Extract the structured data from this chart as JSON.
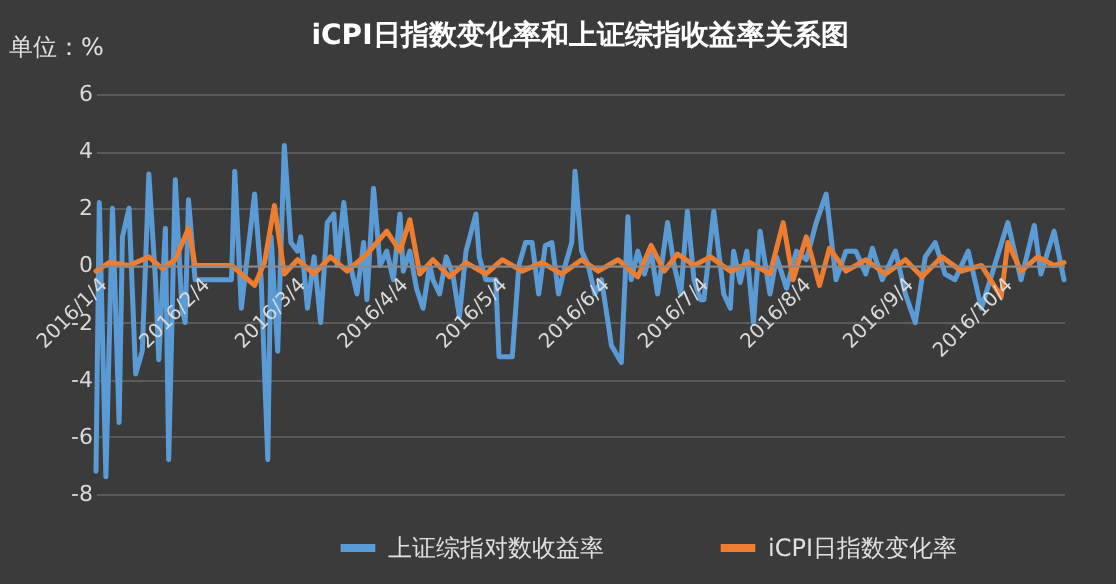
{
  "chart_data": {
    "type": "line",
    "title": "iCPI日指数变化率和上证综指收益率关系图",
    "ylabel": "单位：%",
    "xlim": [
      "2016-01-04",
      "2016-10-23"
    ],
    "ylim": [
      -8,
      6
    ],
    "yticks": [
      -8,
      -6,
      -4,
      -2,
      0,
      2,
      4,
      6
    ],
    "xticks": [
      {
        "value": "2016-01-04",
        "label": "2016/1/4"
      },
      {
        "value": "2016-02-04",
        "label": "2016/2/4"
      },
      {
        "value": "2016-03-04",
        "label": "2016/3/4"
      },
      {
        "value": "2016-04-04",
        "label": "2016/4/4"
      },
      {
        "value": "2016-05-04",
        "label": "2016/5/4"
      },
      {
        "value": "2016-06-04",
        "label": "2016/6/4"
      },
      {
        "value": "2016-07-04",
        "label": "2016/7/4"
      },
      {
        "value": "2016-08-04",
        "label": "2016/8/4"
      },
      {
        "value": "2016-09-04",
        "label": "2016/9/4"
      },
      {
        "value": "2016-10-04",
        "label": "2016/10/4"
      }
    ],
    "grid": "y",
    "legend": "bottom",
    "line_style": "solid",
    "series": [
      {
        "name": "上证综指对数收益率",
        "color": "#5b9bd5",
        "x": [
          "2016-01-04",
          "2016-01-05",
          "2016-01-07",
          "2016-01-09",
          "2016-01-11",
          "2016-01-12",
          "2016-01-14",
          "2016-01-16",
          "2016-01-18",
          "2016-01-20",
          "2016-01-22",
          "2016-01-23",
          "2016-01-25",
          "2016-01-26",
          "2016-01-28",
          "2016-01-30",
          "2016-01-31",
          "2016-02-01",
          "2016-02-03",
          "2016-02-14",
          "2016-02-15",
          "2016-02-17",
          "2016-02-19",
          "2016-02-21",
          "2016-02-23",
          "2016-02-25",
          "2016-02-26",
          "2016-02-28",
          "2016-03-01",
          "2016-03-03",
          "2016-03-05",
          "2016-03-06",
          "2016-03-08",
          "2016-03-10",
          "2016-03-12",
          "2016-03-14",
          "2016-03-16",
          "2016-03-17",
          "2016-03-19",
          "2016-03-21",
          "2016-03-23",
          "2016-03-25",
          "2016-03-26",
          "2016-03-28",
          "2016-03-30",
          "2016-04-01",
          "2016-04-03",
          "2016-04-05",
          "2016-04-06",
          "2016-04-08",
          "2016-04-10",
          "2016-04-12",
          "2016-04-14",
          "2016-04-15",
          "2016-04-17",
          "2016-04-19",
          "2016-04-21",
          "2016-04-23",
          "2016-04-25",
          "2016-04-28",
          "2016-04-29",
          "2016-05-01",
          "2016-05-04",
          "2016-05-05",
          "2016-05-09",
          "2016-05-11",
          "2016-05-13",
          "2016-05-15",
          "2016-05-17",
          "2016-05-19",
          "2016-05-21",
          "2016-05-23",
          "2016-05-25",
          "2016-05-27",
          "2016-05-28",
          "2016-05-30",
          "2016-06-01",
          "2016-06-03",
          "2016-06-05",
          "2016-06-07",
          "2016-06-08",
          "2016-06-11",
          "2016-06-13",
          "2016-06-14",
          "2016-06-16",
          "2016-06-18",
          "2016-06-20",
          "2016-06-22",
          "2016-06-25",
          "2016-06-27",
          "2016-06-29",
          "2016-07-01",
          "2016-07-03",
          "2016-07-05",
          "2016-07-06",
          "2016-07-09",
          "2016-07-12",
          "2016-07-14",
          "2016-07-15",
          "2016-07-17",
          "2016-07-19",
          "2016-07-21",
          "2016-07-23",
          "2016-07-26",
          "2016-07-28",
          "2016-07-31",
          "2016-08-03",
          "2016-08-06",
          "2016-08-09",
          "2016-08-12",
          "2016-08-15",
          "2016-08-18",
          "2016-08-21",
          "2016-08-24",
          "2016-08-26",
          "2016-08-29",
          "2016-09-02",
          "2016-09-05",
          "2016-09-08",
          "2016-09-11",
          "2016-09-14",
          "2016-09-17",
          "2016-09-20",
          "2016-09-24",
          "2016-09-28",
          "2016-10-06",
          "2016-10-10",
          "2016-10-14",
          "2016-10-16",
          "2016-10-20",
          "2016-10-23"
        ],
        "values": [
          -7.2,
          2.2,
          -7.4,
          2.0,
          -5.5,
          1.0,
          2.0,
          -3.8,
          -3.0,
          3.2,
          -0.5,
          -3.3,
          1.3,
          -6.8,
          3.0,
          -1.5,
          -2.0,
          2.3,
          -0.5,
          -0.5,
          3.3,
          -1.5,
          0.5,
          2.5,
          -0.5,
          -6.8,
          1.0,
          -3.0,
          4.2,
          0.8,
          0.5,
          1.0,
          -1.5,
          0.3,
          -2.0,
          1.5,
          1.8,
          0.0,
          2.2,
          0.0,
          -1.0,
          0.8,
          -1.2,
          2.7,
          0.0,
          0.5,
          -0.5,
          1.8,
          -0.2,
          0.5,
          -0.8,
          -1.5,
          0.0,
          -0.5,
          -1.0,
          0.3,
          -0.3,
          -1.8,
          0.5,
          1.8,
          0.3,
          -0.5,
          -0.5,
          -3.2,
          -3.2,
          0.0,
          0.8,
          0.8,
          -1.0,
          0.7,
          0.8,
          -1.0,
          0.0,
          0.8,
          3.3,
          0.5,
          0.0,
          -1.0,
          -0.5,
          -2.0,
          -2.8,
          -3.4,
          1.7,
          -0.5,
          0.5,
          -0.3,
          0.5,
          -1.0,
          1.5,
          0.0,
          -1.0,
          1.9,
          -0.5,
          -1.2,
          -1.2,
          1.9,
          -1.0,
          -1.5,
          0.5,
          -0.6,
          0.5,
          -2.0,
          1.2,
          -1.0,
          0.3,
          -0.8,
          0.5,
          0.2,
          1.5,
          2.5,
          -0.5,
          0.5,
          0.5,
          -0.3,
          0.6,
          -0.5,
          0.5,
          -1.0,
          -2.0,
          0.3,
          0.8,
          -0.3,
          -0.5,
          0.5,
          -1.5,
          1.5,
          -0.5,
          1.4,
          -0.3,
          1.2,
          -0.5
        ]
      },
      {
        "name": "iCPI日指数变化率",
        "color": "#ed7d31",
        "x": [
          "2016-01-04",
          "2016-01-08",
          "2016-01-14",
          "2016-01-20",
          "2016-01-24",
          "2016-01-28",
          "2016-02-01",
          "2016-02-03",
          "2016-02-14",
          "2016-02-21",
          "2016-02-24",
          "2016-02-27",
          "2016-03-01",
          "2016-03-05",
          "2016-03-10",
          "2016-03-15",
          "2016-03-20",
          "2016-03-26",
          "2016-04-01",
          "2016-04-05",
          "2016-04-08",
          "2016-04-11",
          "2016-04-15",
          "2016-04-20",
          "2016-04-25",
          "2016-05-01",
          "2016-05-06",
          "2016-05-12",
          "2016-05-18",
          "2016-05-24",
          "2016-05-30",
          "2016-06-04",
          "2016-06-10",
          "2016-06-16",
          "2016-06-20",
          "2016-06-24",
          "2016-06-28",
          "2016-07-03",
          "2016-07-08",
          "2016-07-14",
          "2016-07-20",
          "2016-07-26",
          "2016-07-30",
          "2016-08-02",
          "2016-08-06",
          "2016-08-10",
          "2016-08-13",
          "2016-08-18",
          "2016-08-24",
          "2016-08-30",
          "2016-09-05",
          "2016-09-10",
          "2016-09-16",
          "2016-09-22",
          "2016-09-28",
          "2016-10-04",
          "2016-10-06",
          "2016-10-10",
          "2016-10-15",
          "2016-10-20",
          "2016-10-23"
        ],
        "values": [
          -0.2,
          0.1,
          0.0,
          0.3,
          -0.1,
          0.2,
          1.3,
          0.0,
          0.0,
          -0.7,
          0.1,
          2.1,
          -0.3,
          0.2,
          -0.3,
          0.3,
          -0.2,
          0.4,
          1.2,
          0.5,
          1.6,
          -0.3,
          0.2,
          -0.4,
          0.1,
          -0.3,
          0.2,
          -0.2,
          0.1,
          -0.3,
          0.2,
          -0.2,
          0.2,
          -0.4,
          0.7,
          -0.2,
          0.4,
          0.0,
          0.3,
          -0.2,
          0.1,
          -0.3,
          1.5,
          -0.5,
          1.0,
          -0.7,
          0.6,
          -0.2,
          0.2,
          -0.3,
          0.2,
          -0.4,
          0.3,
          -0.2,
          0.0,
          -1.1,
          0.8,
          -0.2,
          0.3,
          0.0,
          0.1
        ]
      }
    ]
  }
}
